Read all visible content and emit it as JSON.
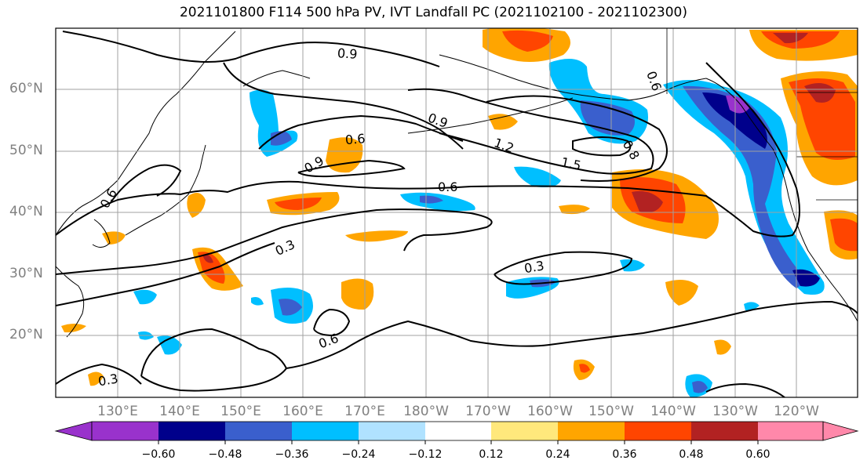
{
  "title": "2021101800 F114 500 hPa PV, IVT Landfall PC (2021102100 - 2021102300)",
  "lat_labels": [
    "60°N",
    "50°N",
    "40°N",
    "30°N",
    "20°N"
  ],
  "lon_labels": [
    "130°E",
    "140°E",
    "150°E",
    "160°E",
    "170°E",
    "180°W",
    "170°W",
    "160°W",
    "150°W",
    "140°W",
    "130°W",
    "120°W"
  ],
  "contour_labels": [
    "0.9",
    "0.9",
    "0.6",
    "0.9",
    "1.2",
    "1.5",
    "0.8",
    "0.6",
    "0.6",
    "0.3",
    "0.3",
    "0.6",
    "0.3",
    "0.6"
  ],
  "colorbar": {
    "tick_labels": [
      "−0.60",
      "−0.48",
      "−0.36",
      "−0.24",
      "−0.12",
      "0.12",
      "0.24",
      "0.36",
      "0.48",
      "0.60"
    ],
    "colors": [
      "#9932cc",
      "#00008b",
      "#3a5fcd",
      "#00bfff",
      "#b0e2ff",
      "#ffffff",
      "#ffe87c",
      "#ffa500",
      "#ff4500",
      "#b22222",
      "#ff88aa"
    ]
  },
  "fill_colors": {
    "pos_light": "#ffe87c",
    "pos_1": "#ffa500",
    "pos_2": "#ff4500",
    "pos_3": "#b22222",
    "neg_light": "#b0e2ff",
    "neg_1": "#00bfff",
    "neg_2": "#3a5fcd",
    "neg_3": "#00008b",
    "neg_4": "#9932cc"
  }
}
